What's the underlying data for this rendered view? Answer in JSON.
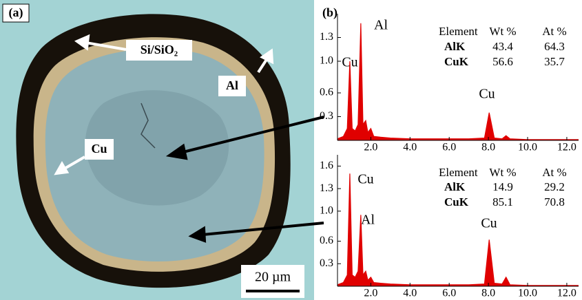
{
  "panel_a": {
    "label": "(a)",
    "labels": [
      "Si/SiO₂",
      "Al",
      "Cu"
    ],
    "scale_bar": "20 µm"
  },
  "panel_b": {
    "label": "(b)"
  },
  "chart_data": [
    {
      "type": "area",
      "color": "#e00000",
      "x": [
        0.3,
        0.6,
        0.8,
        0.93,
        1.05,
        1.2,
        1.35,
        1.49,
        1.6,
        1.74,
        1.85,
        2.0,
        2.15,
        2.5,
        3.0,
        4.0,
        5.0,
        6.0,
        7.0,
        7.8,
        8.04,
        8.3,
        8.7,
        8.9,
        9.1,
        10.0,
        11.0,
        12.0,
        12.6
      ],
      "values": [
        0.02,
        0.05,
        0.15,
        1.0,
        0.15,
        0.12,
        0.2,
        1.48,
        0.2,
        0.25,
        0.1,
        0.15,
        0.05,
        0.04,
        0.03,
        0.02,
        0.02,
        0.02,
        0.02,
        0.03,
        0.35,
        0.03,
        0.02,
        0.06,
        0.02,
        0.01,
        0.01,
        0.01,
        0.01
      ],
      "xlim": [
        0.3,
        12.6
      ],
      "ylim": [
        0,
        1.6
      ],
      "xticks": [
        {
          "value": 2,
          "label": "2.0"
        },
        {
          "value": 4,
          "label": "4.0"
        },
        {
          "value": 6,
          "label": "6.0"
        },
        {
          "value": 8,
          "label": "8.0"
        },
        {
          "value": 10,
          "label": "10.0"
        },
        {
          "value": 12,
          "label": "12.0"
        }
      ],
      "yticks": [
        0.3,
        0.6,
        {
          "value": 1,
          "label": "1.0"
        },
        1.3
      ],
      "annotations": [
        "Cu",
        "Al",
        "Cu"
      ],
      "table": {
        "header": [
          "Element",
          "Wt %",
          "At %"
        ],
        "rows": [
          [
            "AlK",
            43.4,
            64.3
          ],
          [
            "CuK",
            56.6,
            35.7
          ]
        ]
      }
    },
    {
      "type": "area",
      "color": "#e00000",
      "x": [
        0.3,
        0.6,
        0.8,
        0.93,
        1.05,
        1.2,
        1.35,
        1.49,
        1.6,
        1.74,
        1.85,
        2.0,
        2.15,
        2.5,
        3.0,
        4.0,
        5.0,
        6.0,
        7.0,
        7.8,
        8.04,
        8.3,
        8.7,
        8.9,
        9.1,
        10.0,
        11.0,
        12.0,
        12.6
      ],
      "values": [
        0.02,
        0.05,
        0.15,
        1.5,
        0.15,
        0.12,
        0.2,
        0.95,
        0.15,
        0.2,
        0.08,
        0.12,
        0.05,
        0.04,
        0.03,
        0.02,
        0.02,
        0.02,
        0.02,
        0.03,
        0.62,
        0.04,
        0.03,
        0.12,
        0.02,
        0.01,
        0.01,
        0.01,
        0.01
      ],
      "xlim": [
        0.3,
        12.6
      ],
      "ylim": [
        0,
        1.75
      ],
      "xticks": [
        {
          "value": 2,
          "label": "2.0"
        },
        {
          "value": 4,
          "label": "4.0"
        },
        {
          "value": 6,
          "label": "6.0"
        },
        {
          "value": 8,
          "label": "8.0"
        },
        {
          "value": 10,
          "label": "10.0"
        },
        {
          "value": 12,
          "label": "12.0"
        }
      ],
      "yticks": [
        0.3,
        0.6,
        {
          "value": 1,
          "label": "1.0"
        },
        1.3,
        1.6
      ],
      "annotations": [
        "Cu",
        "Al",
        "Cu"
      ],
      "table": {
        "header": [
          "Element",
          "Wt %",
          "At %"
        ],
        "rows": [
          [
            "AlK",
            14.9,
            29.2
          ],
          [
            "CuK",
            85.1,
            70.8
          ]
        ]
      }
    }
  ]
}
